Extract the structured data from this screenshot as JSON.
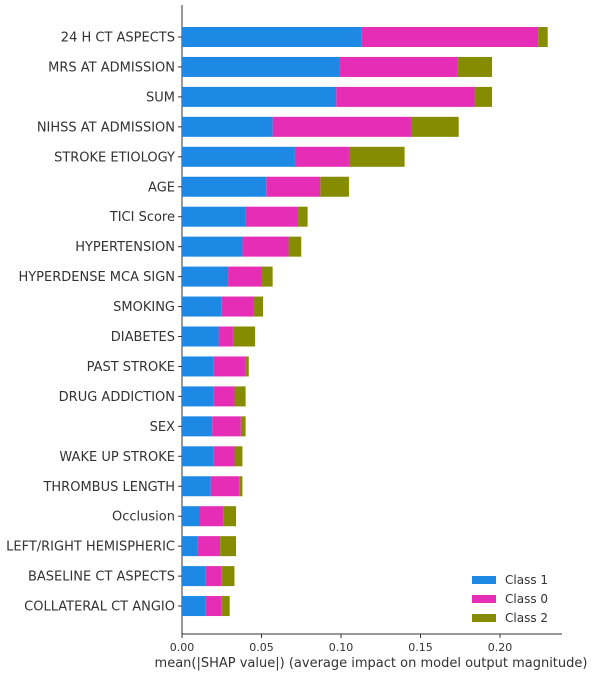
{
  "chart_data": {
    "type": "bar",
    "orientation": "horizontal",
    "stacked": true,
    "xlabel": "mean(|SHAP value|) (average impact on model output magnitude)",
    "xlim": [
      0,
      0.24
    ],
    "xticks": [
      "0.00",
      "0.05",
      "0.10",
      "0.15",
      "0.20"
    ],
    "grid": false,
    "legend_position": "bottom-right",
    "categories": [
      "24 H CT ASPECTS",
      "MRS AT ADMISSION",
      "SUM",
      "NIHSS AT ADMISSION",
      "STROKE ETIOLOGY",
      "AGE",
      "TICI Score",
      "HYPERTENSION",
      "HYPERDENSE MCA SIGN",
      "SMOKING",
      "DIABETES",
      "PAST STROKE",
      "DRUG ADDICTION",
      "SEX",
      "WAKE UP STROKE",
      "THROMBUS LENGTH",
      "Occlusion",
      "LEFT/RIGHT HEMISPHERIC",
      "BASELINE CT ASPECTS",
      "COLLATERAL CT ANGIO"
    ],
    "series": [
      {
        "name": "Class 1",
        "color": "#1e88e5",
        "values": [
          0.113,
          0.099,
          0.097,
          0.057,
          0.071,
          0.053,
          0.04,
          0.038,
          0.029,
          0.025,
          0.023,
          0.02,
          0.02,
          0.019,
          0.02,
          0.018,
          0.011,
          0.01,
          0.015,
          0.015
        ]
      },
      {
        "name": "Class 0",
        "color": "#e62db5",
        "values": [
          0.111,
          0.074,
          0.087,
          0.087,
          0.034,
          0.034,
          0.033,
          0.029,
          0.021,
          0.02,
          0.009,
          0.02,
          0.013,
          0.018,
          0.013,
          0.018,
          0.015,
          0.014,
          0.01,
          0.01
        ]
      },
      {
        "name": "Class 2",
        "color": "#868c00",
        "values": [
          0.006,
          0.022,
          0.011,
          0.03,
          0.035,
          0.018,
          0.006,
          0.008,
          0.007,
          0.006,
          0.014,
          0.002,
          0.007,
          0.003,
          0.005,
          0.002,
          0.008,
          0.01,
          0.008,
          0.005
        ]
      }
    ]
  }
}
